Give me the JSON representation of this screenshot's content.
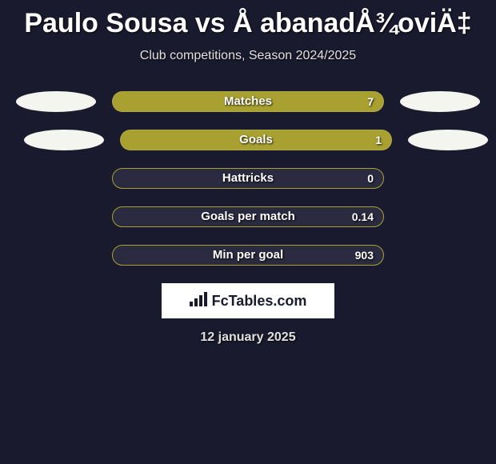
{
  "title": "Paulo Sousa vs Å abanadÅ¾oviÄ‡",
  "subtitle": "Club competitions, Season 2024/2025",
  "date": "12 january 2025",
  "logo_text": "FcTables.com",
  "colors": {
    "background": "#1a1a2e",
    "bar_fill": "#a8a030",
    "bar_bg": "#2a2a40",
    "ellipse": "#f5f5f0",
    "text": "#ffffff"
  },
  "stats": [
    {
      "label": "Matches",
      "value": "7",
      "fill_percent": 100,
      "show_left_ellipse": true,
      "show_right_ellipse": true
    },
    {
      "label": "Goals",
      "value": "1",
      "fill_percent": 100,
      "show_left_ellipse": true,
      "show_right_ellipse": true,
      "ellipse_offset": true
    },
    {
      "label": "Hattricks",
      "value": "0",
      "fill_percent": 0,
      "show_left_ellipse": false,
      "show_right_ellipse": false
    },
    {
      "label": "Goals per match",
      "value": "0.14",
      "fill_percent": 0,
      "show_left_ellipse": false,
      "show_right_ellipse": false
    },
    {
      "label": "Min per goal",
      "value": "903",
      "fill_percent": 0,
      "show_left_ellipse": false,
      "show_right_ellipse": false
    }
  ]
}
